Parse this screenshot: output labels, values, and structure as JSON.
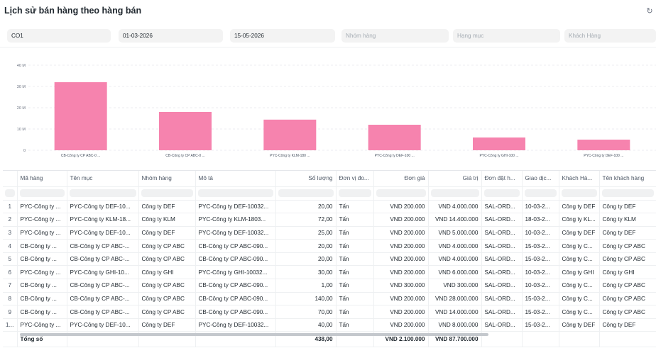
{
  "page": {
    "title": "Lịch sử bán hàng theo hàng bán"
  },
  "filters": {
    "company": "CO1",
    "from_date": "01-03-2026",
    "to_date": "15-05-2026",
    "item_group_placeholder": "Nhóm hàng",
    "category_placeholder": "Hạng mục",
    "customer_placeholder": "Khách Hàng"
  },
  "chart_data": {
    "type": "bar",
    "yticks": [
      "0",
      "10 M",
      "20 M",
      "30 M",
      "40 M"
    ],
    "ylim": [
      0,
      40000000
    ],
    "categories": [
      "CB-Công ty CP ABC-0 ...",
      "CB-Công ty CP ABC-0 ...",
      "PYC-Công ty KLM-180 ...",
      "PYC-Công ty DEF-100 ...",
      "PYC-Công ty GHI-100 ...",
      "PYC-Công ty DEF-100 ..."
    ],
    "values": [
      32000000,
      18000000,
      14400000,
      12000000,
      6000000,
      5000000
    ],
    "color": "#f683ae"
  },
  "table": {
    "columns": [
      "Mã hàng",
      "Tên mục",
      "Nhóm hàng",
      "Mô tả",
      "Số lượng",
      "Đơn vị đo...",
      "Đơn giá",
      "Giá trị",
      "Đơn đặt h...",
      "Giao dịc...",
      "Khách Hà...",
      "Tên khách hàng"
    ],
    "rows": [
      [
        "1",
        "PYC-Công ty ...",
        "PYC-Công ty DEF-10...",
        "Công ty DEF",
        "PYC-Công ty DEF-10032...",
        "20,00",
        "Tấn",
        "VND 200.000",
        "VND 4.000.000",
        "SAL-ORD...",
        "10-03-2...",
        "Công ty DEF",
        "Công ty DEF"
      ],
      [
        "2",
        "PYC-Công ty ...",
        "PYC-Công ty KLM-18...",
        "Công ty KLM",
        "PYC-Công ty KLM-1803...",
        "72,00",
        "Tấn",
        "VND 200.000",
        "VND 14.400.000",
        "SAL-ORD...",
        "18-03-2...",
        "Công ty KL...",
        "Công ty KLM"
      ],
      [
        "3",
        "PYC-Công ty ...",
        "PYC-Công ty DEF-10...",
        "Công ty DEF",
        "PYC-Công ty DEF-10032...",
        "25,00",
        "Tấn",
        "VND 200.000",
        "VND 5.000.000",
        "SAL-ORD...",
        "10-03-2...",
        "Công ty DEF",
        "Công ty DEF"
      ],
      [
        "4",
        "CB-Công ty ...",
        "CB-Công ty CP ABC-...",
        "Công ty CP ABC",
        "CB-Công ty CP ABC-090...",
        "20,00",
        "Tấn",
        "VND 200.000",
        "VND 4.000.000",
        "SAL-ORD...",
        "15-03-2...",
        "Công ty C...",
        "Công ty CP ABC"
      ],
      [
        "5",
        "CB-Công ty ...",
        "CB-Công ty CP ABC-...",
        "Công ty CP ABC",
        "CB-Công ty CP ABC-090...",
        "20,00",
        "Tấn",
        "VND 200.000",
        "VND 4.000.000",
        "SAL-ORD...",
        "15-03-2...",
        "Công ty C...",
        "Công ty CP ABC"
      ],
      [
        "6",
        "PYC-Công ty ...",
        "PYC-Công ty GHI-10...",
        "Công ty GHI",
        "PYC-Công ty GHI-10032...",
        "30,00",
        "Tấn",
        "VND 200.000",
        "VND 6.000.000",
        "SAL-ORD...",
        "10-03-2...",
        "Công ty GHI",
        "Công ty GHI"
      ],
      [
        "7",
        "CB-Công ty ...",
        "CB-Công ty CP ABC-...",
        "Công ty CP ABC",
        "CB-Công ty CP ABC-090...",
        "1,00",
        "Tấn",
        "VND 300.000",
        "VND 300.000",
        "SAL-ORD...",
        "10-03-2...",
        "Công ty C...",
        "Công ty CP ABC"
      ],
      [
        "8",
        "CB-Công ty ...",
        "CB-Công ty CP ABC-...",
        "Công ty CP ABC",
        "CB-Công ty CP ABC-090...",
        "140,00",
        "Tấn",
        "VND 200.000",
        "VND 28.000.000",
        "SAL-ORD...",
        "15-03-2...",
        "Công ty C...",
        "Công ty CP ABC"
      ],
      [
        "9",
        "CB-Công ty ...",
        "CB-Công ty CP ABC-...",
        "Công ty CP ABC",
        "CB-Công ty CP ABC-090...",
        "70,00",
        "Tấn",
        "VND 200.000",
        "VND 14.000.000",
        "SAL-ORD...",
        "15-03-2...",
        "Công ty C...",
        "Công ty CP ABC"
      ],
      [
        "1...",
        "PYC-Công ty ...",
        "PYC-Công ty DEF-10...",
        "Công ty DEF",
        "PYC-Công ty DEF-10032...",
        "40,00",
        "Tấn",
        "VND 200.000",
        "VND 8.000.000",
        "SAL-ORD...",
        "15-03-2...",
        "Công ty DEF",
        "Công ty DEF"
      ]
    ],
    "total": {
      "label": "Tổng số",
      "quantity": "438,00",
      "rate": "VND 2.100.000",
      "amount": "VND 87.700.000"
    }
  }
}
